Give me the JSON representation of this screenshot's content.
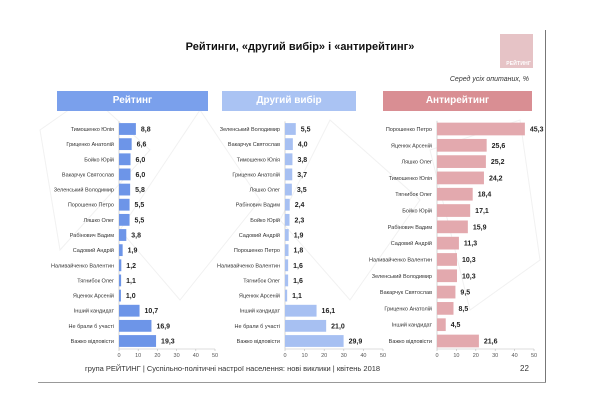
{
  "header": {
    "title": "Рейтинги, «другий вибір» і «антирейтинг»",
    "logo_text": "РЕЙТИНГ",
    "subtitle": "Серед усіх опитаних, %"
  },
  "footer": {
    "text": "група РЕЙТИНГ  |  Суспільно-політичні настрої населення: нові виклики  |  квітень 2018",
    "page_number": "22"
  },
  "colors": {
    "rating_bar": "#6d95e8",
    "second_choice_bar": "#a7c0f2",
    "antirating_bar": "#e3a9ae"
  },
  "chart_data": [
    {
      "type": "bar",
      "orientation": "horizontal",
      "title": "Рейтинг",
      "xlim": [
        0,
        50
      ],
      "xticks": [
        "0",
        "10",
        "20",
        "30",
        "40",
        "50"
      ],
      "categories": [
        "Тимошенко Юлія",
        "Гриценко Анатолій",
        "Бойко Юрій",
        "Вакарчук Святослав",
        "Зеленський Володимир",
        "Порошенко Петро",
        "Ляшко Олег",
        "Рабінович Вадим",
        "Садовий Андрій",
        "Наливайченко Валентин",
        "Тягнибок Олег",
        "Яценюк Арсеній",
        "Інший кандидат",
        "Не брали б участі",
        "Важко відповісти"
      ],
      "values": [
        8.8,
        6.6,
        6.0,
        6.0,
        5.8,
        5.5,
        5.5,
        3.8,
        1.9,
        1.2,
        1.1,
        1.0,
        10.7,
        16.9,
        19.3
      ],
      "labels": [
        "8,8",
        "6,6",
        "6,0",
        "6,0",
        "5,8",
        "5,5",
        "5,5",
        "3,8",
        "1,9",
        "1,2",
        "1,1",
        "1,0",
        "10,7",
        "16,9",
        "19,3"
      ]
    },
    {
      "type": "bar",
      "orientation": "horizontal",
      "title": "Другий вибір",
      "xlim": [
        0,
        50
      ],
      "xticks": [
        "0",
        "10",
        "20",
        "30",
        "40",
        "50"
      ],
      "categories": [
        "Зеленський Володимир",
        "Вакарчук Святослав",
        "Тимошенко Юлія",
        "Гриценко Анатолій",
        "Ляшко Олег",
        "Рабінович Вадим",
        "Бойко Юрій",
        "Садовий Андрій",
        "Порошенко Петро",
        "Наливайченко Валентин",
        "Тягнибок Олег",
        "Яценюк Арсеній",
        "Інший кандидат",
        "Не брали б участі",
        "Важко відповісти"
      ],
      "values": [
        5.5,
        4.0,
        3.8,
        3.7,
        3.5,
        2.4,
        2.3,
        1.9,
        1.8,
        1.6,
        1.6,
        1.1,
        16.1,
        21.0,
        29.9
      ],
      "labels": [
        "5,5",
        "4,0",
        "3,8",
        "3,7",
        "3,5",
        "2,4",
        "2,3",
        "1,9",
        "1,8",
        "1,6",
        "1,6",
        "1,1",
        "16,1",
        "21,0",
        "29,9"
      ]
    },
    {
      "type": "bar",
      "orientation": "horizontal",
      "title": "Антирейтинг",
      "xlim": [
        0,
        50
      ],
      "xticks": [
        "0",
        "10",
        "20",
        "30",
        "40",
        "50"
      ],
      "categories": [
        "Порошенко Петро",
        "Яценюк Арсеній",
        "Ляшко Олег",
        "Тимошенко Юлія",
        "Тягнибок Олег",
        "Бойко Юрій",
        "Рабінович Вадим",
        "Садовий Андрій",
        "Наливайченко Валентин",
        "Зеленський Володимир",
        "Вакарчук Святослав",
        "Гриценко Анатолій",
        "Інший кандидат",
        "Важко відповісти"
      ],
      "values": [
        45.3,
        25.6,
        25.2,
        24.2,
        18.4,
        17.1,
        15.9,
        11.3,
        10.3,
        10.3,
        9.5,
        8.5,
        4.5,
        21.6
      ],
      "labels": [
        "45,3",
        "25,6",
        "25,2",
        "24,2",
        "18,4",
        "17,1",
        "15,9",
        "11,3",
        "10,3",
        "10,3",
        "9,5",
        "8,5",
        "4,5",
        "21,6"
      ]
    }
  ]
}
